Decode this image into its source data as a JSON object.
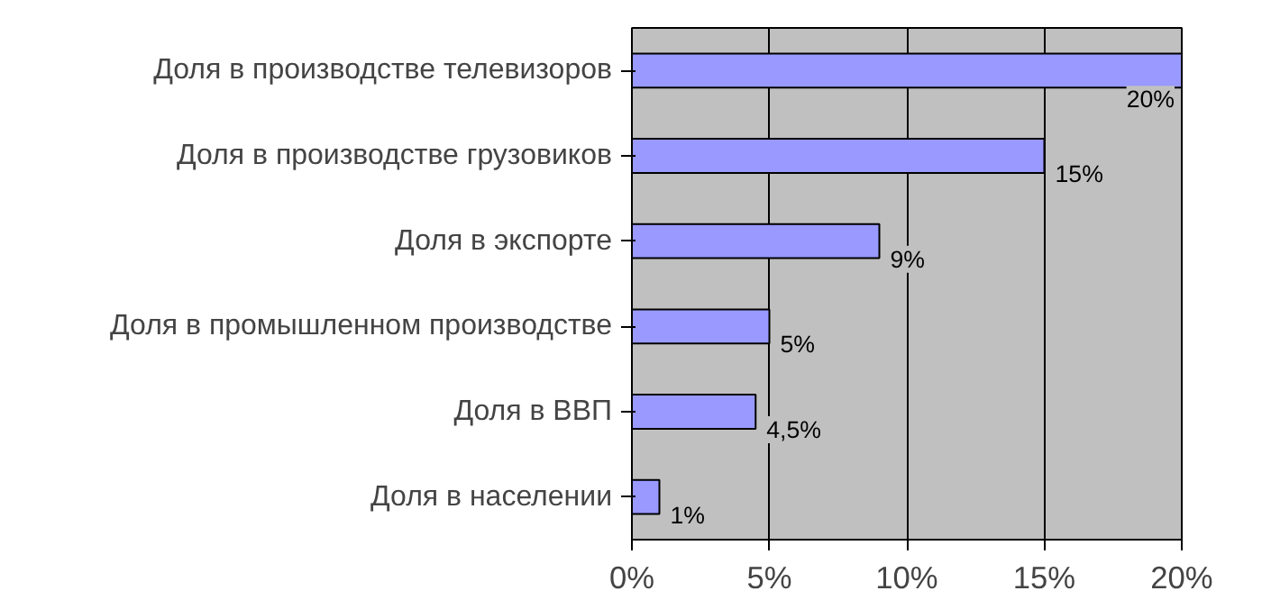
{
  "chart_data": {
    "type": "bar",
    "orientation": "horizontal",
    "categories": [
      "Доля в производстве телевизоров",
      "Доля в производстве грузовиков",
      "Доля в экспорте",
      "Доля в промышленном производстве",
      "Доля в ВВП",
      "Доля в населении"
    ],
    "values": [
      20,
      15,
      9,
      5,
      4.5,
      1
    ],
    "value_labels": [
      "20%",
      "15%",
      "9%",
      "5%",
      "4,5%",
      "1%"
    ],
    "color": "#9999ff",
    "xlim": [
      0,
      20
    ],
    "xticks": [
      {
        "value": 0,
        "label": "0%"
      },
      {
        "value": 5,
        "label": "5%"
      },
      {
        "value": 10,
        "label": "10%"
      },
      {
        "value": 15,
        "label": "15%"
      },
      {
        "value": 20,
        "label": "20%"
      }
    ],
    "grid": "x"
  }
}
